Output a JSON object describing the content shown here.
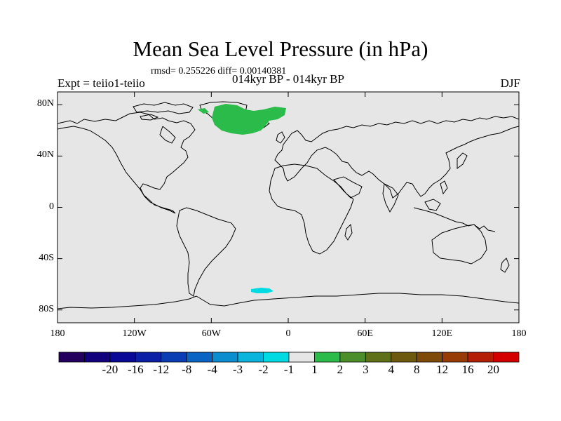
{
  "title": "Mean Sea Level Pressure (in hPa)",
  "stats": "rmsd= 0.255226 diff= 0.00140381",
  "experiment": "Expt = teiio1-teiio",
  "period": "014kyr BP - 014kyr BP",
  "season": "DJF",
  "map": {
    "projection": "cylindrical-equidistant",
    "lon_range": [
      -180,
      180
    ],
    "lat_range": [
      -90,
      90
    ],
    "background_color": "#e6e6e6",
    "coastline_color": "#000000",
    "lat_ticks": [
      {
        "value": 80,
        "label": "80N"
      },
      {
        "value": 40,
        "label": "40N"
      },
      {
        "value": 0,
        "label": "0"
      },
      {
        "value": -40,
        "label": "40S"
      },
      {
        "value": -80,
        "label": "80S"
      }
    ],
    "lon_ticks": [
      {
        "value": -180,
        "label": "180"
      },
      {
        "value": -120,
        "label": "120W"
      },
      {
        "value": -60,
        "label": "60W"
      },
      {
        "value": 0,
        "label": "0"
      },
      {
        "value": 60,
        "label": "60E"
      },
      {
        "value": 120,
        "label": "120E"
      },
      {
        "value": 180,
        "label": "180"
      }
    ],
    "anomaly_regions": [
      {
        "name": "north-atlantic-positive-anomaly",
        "bin": "1 to 2",
        "color": "#2bbb4a"
      },
      {
        "name": "greenland-arm-positive-anomaly",
        "bin": "1 to 2",
        "color": "#2bbb4a"
      },
      {
        "name": "southern-ocean-negative-anomaly",
        "bin": "-2 to -1",
        "color": "#00dbe3"
      }
    ]
  },
  "colorbar": {
    "colors": [
      "#23005e",
      "#10007e",
      "#0a0896",
      "#0a1ea6",
      "#0a3cb4",
      "#0a64c4",
      "#0a8ed0",
      "#0ab4dc",
      "#00dbe3",
      "#e6e6e6",
      "#2bbb4a",
      "#4b8e2a",
      "#5e7018",
      "#6e5a0e",
      "#7e4a08",
      "#983c05",
      "#b41e04",
      "#d40000"
    ],
    "labels": [
      "-20",
      "-16",
      "-12",
      "-8",
      "-4",
      "-3",
      "-2",
      "-1",
      "1",
      "2",
      "3",
      "4",
      "8",
      "12",
      "16",
      "20"
    ]
  }
}
